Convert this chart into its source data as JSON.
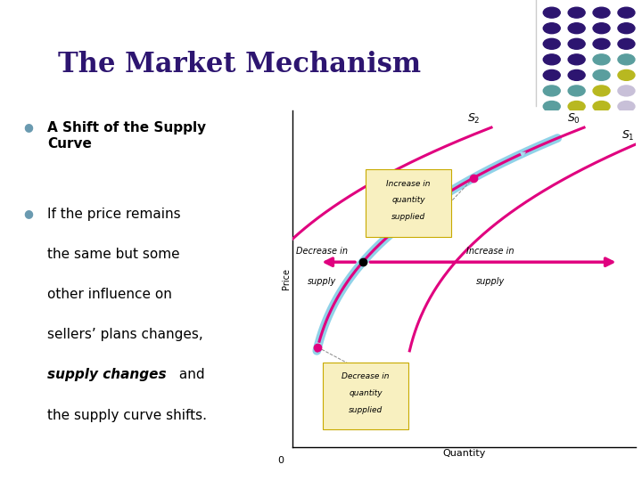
{
  "title": "The Market Mechanism",
  "title_color": "#2d1570",
  "title_fontsize": 22,
  "bg_color": "#ffffff",
  "bullet_color": "#6a9ab0",
  "xlabel": "Quantity",
  "ylabel": "Price",
  "curve_color_magenta": "#e0007f",
  "curve_color_blue": "#55bbdd",
  "box_color": "#f8f0c0",
  "box_edge": "#c8aa00",
  "dot_rows": [
    [
      "#2d1570",
      "#2d1570",
      "#2d1570",
      "#2d1570"
    ],
    [
      "#2d1570",
      "#2d1570",
      "#2d1570",
      "#2d1570"
    ],
    [
      "#2d1570",
      "#2d1570",
      "#2d1570",
      "#2d1570"
    ],
    [
      "#2d1570",
      "#2d1570",
      "#5a9e9e",
      "#5a9e9e"
    ],
    [
      "#2d1570",
      "#2d1570",
      "#5a9e9e",
      "#b8b820"
    ],
    [
      "#5a9e9e",
      "#5a9e9e",
      "#b8b820",
      "#c8c0d8"
    ],
    [
      "#5a9e9e",
      "#b8b820",
      "#b8b820",
      "#c8c0d8"
    ],
    [
      "#b8b820",
      "#b8b820",
      "#c8c0d8",
      "#c8c0d8"
    ]
  ]
}
